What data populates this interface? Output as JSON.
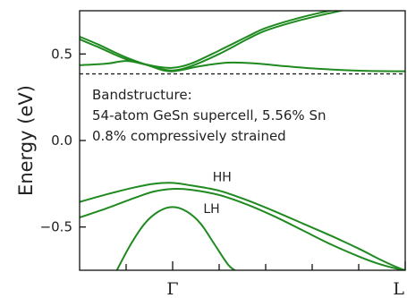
{
  "chart_data": {
    "type": "line",
    "title": "",
    "ylabel": "Energy (eV)",
    "xlabel": "",
    "ylim": [
      -0.75,
      0.75
    ],
    "xlim": [
      -1,
      2.5
    ],
    "yticks": [
      -0.5,
      0.0,
      0.5
    ],
    "ytick_labels": [
      "−0.5",
      "0.0",
      "0.5"
    ],
    "xticks_major": [
      0,
      2.5
    ],
    "xtick_labels": [
      "Γ",
      "L"
    ],
    "xticks_minor": [
      -0.5,
      0.5,
      1.0,
      1.5,
      2.0
    ],
    "reference_line": {
      "y": 0.385,
      "style": "dashed"
    },
    "annotation_lines": [
      "Bandstructure:",
      "54-atom GeSn supercell, 5.56% Sn",
      "0.8% compressively strained"
    ],
    "band_labels": [
      {
        "text": "HH",
        "x": 0.43,
        "y": -0.235
      },
      {
        "text": "LH",
        "x": 0.33,
        "y": -0.42
      }
    ],
    "series_color": "#1f8a1f",
    "series": [
      {
        "x": [
          -1.0,
          -0.8,
          -0.5,
          -0.2,
          0.0,
          0.2,
          0.5,
          0.8,
          1.0,
          1.3,
          1.6,
          1.9
        ],
        "values": [
          0.6,
          0.555,
          0.48,
          0.425,
          0.405,
          0.43,
          0.5,
          0.585,
          0.635,
          0.685,
          0.725,
          0.76
        ]
      },
      {
        "x": [
          -1.0,
          -0.8,
          -0.5,
          -0.2,
          0.0,
          0.2,
          0.5,
          0.8,
          1.0,
          1.3,
          1.6,
          1.8
        ],
        "values": [
          0.585,
          0.54,
          0.47,
          0.43,
          0.42,
          0.445,
          0.52,
          0.6,
          0.65,
          0.7,
          0.74,
          0.76
        ]
      },
      {
        "x": [
          -1.0,
          -0.7,
          -0.5,
          -0.3,
          -0.1,
          0.0,
          0.1,
          0.3,
          0.6,
          0.9,
          1.2,
          1.5,
          1.8,
          2.1,
          2.5
        ],
        "values": [
          0.435,
          0.445,
          0.46,
          0.44,
          0.405,
          0.4,
          0.408,
          0.43,
          0.45,
          0.445,
          0.43,
          0.417,
          0.408,
          0.402,
          0.4
        ]
      },
      {
        "x": [
          -1.0,
          -0.7,
          -0.4,
          -0.2,
          0.0,
          0.2,
          0.5,
          0.8,
          1.1,
          1.4,
          1.7,
          2.0,
          2.2,
          2.4,
          2.5
        ],
        "values": [
          -0.355,
          -0.31,
          -0.27,
          -0.25,
          -0.245,
          -0.26,
          -0.29,
          -0.345,
          -0.41,
          -0.48,
          -0.55,
          -0.625,
          -0.68,
          -0.73,
          -0.75
        ]
      },
      {
        "x": [
          -1.0,
          -0.7,
          -0.4,
          -0.2,
          0.0,
          0.2,
          0.5,
          0.8,
          1.1,
          1.4,
          1.7,
          2.0,
          2.2,
          2.4,
          2.5
        ],
        "values": [
          -0.445,
          -0.39,
          -0.33,
          -0.295,
          -0.28,
          -0.285,
          -0.315,
          -0.37,
          -0.44,
          -0.52,
          -0.6,
          -0.67,
          -0.71,
          -0.74,
          -0.75
        ]
      },
      {
        "x": [
          -0.6,
          -0.45,
          -0.3,
          -0.15,
          0.0,
          0.15,
          0.3,
          0.45,
          0.6,
          0.7
        ],
        "values": [
          -0.75,
          -0.6,
          -0.48,
          -0.41,
          -0.385,
          -0.41,
          -0.48,
          -0.6,
          -0.72,
          -0.76
        ]
      }
    ]
  }
}
